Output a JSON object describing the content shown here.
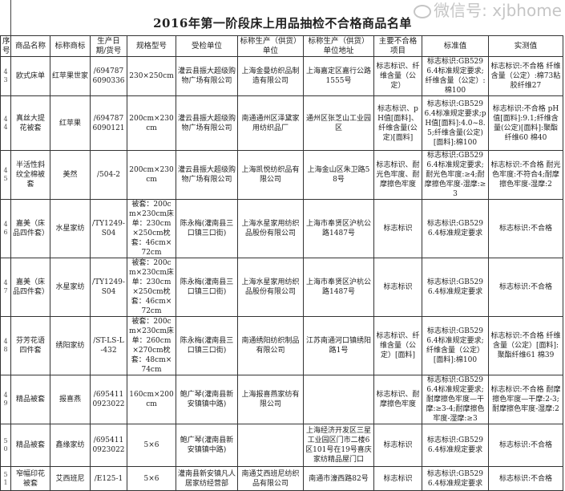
{
  "title": "2016年第一阶段床上用品抽检不合格商品名单",
  "columns": [
    "序号",
    "商品名称",
    "标称商标",
    "生产日期/货号",
    "规格型号",
    "受检单位",
    "标称生产（供货）单位",
    "标称生产（供货）单位地址",
    "主要不合格项目",
    "标准值",
    "实测值"
  ],
  "rows": [
    {
      "no": "43",
      "name": "欧式床单",
      "brand": "红苹果世家",
      "code": "/6947876090336",
      "spec": "230×250cm",
      "inspected": "灌云县振大超级购物广场有限公司",
      "maker": "上海金曼纺织品制造有限公司",
      "address": "上海嘉定区嘉行公路1555号",
      "item": "标志标识、纤维含量（公定）",
      "standard": "标志标识:GB5296.4标准规定要求;纤维含量（公定）:棉100",
      "measured": "标志标识:不合格 纤维含量（公定）:棉73粘胶纤维27"
    },
    {
      "no": "44",
      "name": "真丝大提花被套",
      "brand": "红苹果",
      "code": "/6947876090121",
      "spec": "200cm×230cm",
      "inspected": "灌云县振大超级购物广场有限公司",
      "maker": "南通通州区泽黛家用纺织品厂",
      "address": "通州区张芝山工业园区",
      "item": "标志标识、pH值[面料]、纤维含量(公定)[面料]",
      "standard": "标志标识:GB5296.4标准规定要求;pH值[面料]:4.0~8.5;纤维含量(公定)[面料]:棉100",
      "measured": "标志标识:不合格 pH值[面料]:9.1;纤维含量(公定)[面料]:聚酯纤维60 棉40"
    },
    {
      "no": "45",
      "name": "半活性斜纹全棉被套",
      "brand": "美然",
      "code": "/504-2",
      "spec": "200cm×230cm",
      "inspected": "灌云县振大超级购物广场有限公司",
      "maker": "上海凯悦纺织品有限公司",
      "address": "上海金山区朱卫路58号",
      "item": "标志标识、耐光色牢度、耐摩擦色牢度",
      "standard": "标志标识:GB5296.4标准规定要求;耐光色牢度:≥4;耐摩擦色牢度-湿摩:≥3",
      "measured": "标志标识:不合格 耐光色牢度:不符合4;耐摩擦色牢度-湿摩:2"
    },
    {
      "no": "46",
      "name": "嘉美（床品四件套）",
      "brand": "水星家纺",
      "code": "/TY1249-S04",
      "spec": "被套：200cm×230cm床单：230cm×250cm枕套：46cm×72cm",
      "inspected": "陈永梅(灌南县三口镇三口街)",
      "maker": "上海水星家用纺织品股份有限公司",
      "address": "上海市奉贤区沪杭公路1487号",
      "item": "标志标识",
      "standard": "标志标识:GB5296.4标准规定要求",
      "measured": "标志标识:不合格"
    },
    {
      "no": "47",
      "name": "嘉美（床品四件套）",
      "brand": "水星家纺",
      "code": "/TY1249-S04",
      "spec": "被套：200cm×230cm床单：230cm×250cm枕套：46cm×72cm",
      "inspected": "陈永梅(灌南县三口镇三口街)",
      "maker": "上海水星家用纺织品股份有限公司",
      "address": "上海市奉贤区沪杭公路1487号",
      "item": "标志标识",
      "standard": "标志标识:GB5296.4标准规定要求",
      "measured": "标志标识:不合格"
    },
    {
      "no": "48",
      "name": "芬芳花语四件套",
      "brand": "绣阳家纺",
      "code": "/ST-LS-L-432",
      "spec": "被套：200cm×230cm床单：260cm×270cm枕套：48cm×74cm",
      "inspected": "陈永梅(灌南县三口镇三口街)",
      "maker": "南通绣阳纺织制品有限公司",
      "address": "江苏南通河口镇绣阳路1号",
      "item": "标志标识、纤维含量（公定）[面料]",
      "standard": "标志标识:GB5296.4标准规定要求;纤维含量（公定）[面料]:棉100",
      "measured": "标志标识:不合格 纤维含量（公定）[面料]:聚酯纤维61 棉39"
    },
    {
      "no": "49",
      "name": "精品被套",
      "brand": "报喜燕",
      "code": "/6954110923022",
      "spec": "160cm×200cm",
      "inspected": "鲍广琴(灌南县新安镇镇中路)",
      "maker": "上海报喜燕家纺有限公司",
      "address": "",
      "item": "标志标识、耐摩擦色牢度",
      "standard": "标志标识:GB5296.4标准规定要求;耐摩擦色牢度—干摩:≥3-4;耐摩擦色牢度-湿摩:≥3",
      "measured": "标志标识:不合格 耐摩擦色牢度—干摩:2-3;耐摩擦色牢度-湿摩:2"
    },
    {
      "no": "50",
      "name": "精品被套",
      "brand": "鑫缘家纺",
      "code": "/6954110923022",
      "spec": "5×6",
      "inspected": "鲍广琴(灌南县新安镇镇中路)",
      "maker": "",
      "address": "上海经济开发区三星工业园区门市二楼6区101号在19号喜庆家纺精品屋门口",
      "item": "标志标识",
      "standard": "标志标识:GB5296.4标准规定要求",
      "measured": "标志标识:不合格"
    },
    {
      "no": "51",
      "name": "窄幅印花被套",
      "brand": "艾西班尼",
      "code": "/E125-1",
      "spec": "5×6",
      "inspected": "灌南县新安镇凡人居家纺经营部",
      "maker": "南通艾西班尼纺织品有限公司",
      "address": "南通市濠西路82号",
      "item": "标志标识",
      "standard": "标志标识:GB5296.4标准规定要求",
      "measured": "标志标识:不合格"
    }
  ],
  "watermark": "微信号: xjbhome"
}
